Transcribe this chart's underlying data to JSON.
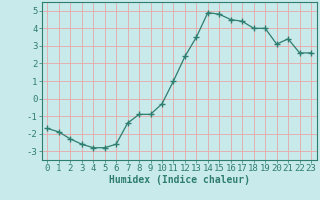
{
  "x": [
    0,
    1,
    2,
    3,
    4,
    5,
    6,
    7,
    8,
    9,
    10,
    11,
    12,
    13,
    14,
    15,
    16,
    17,
    18,
    19,
    20,
    21,
    22,
    23
  ],
  "y": [
    -1.7,
    -1.9,
    -2.3,
    -2.6,
    -2.8,
    -2.8,
    -2.6,
    -1.4,
    -0.9,
    -0.9,
    -0.3,
    1.0,
    2.4,
    3.5,
    4.9,
    4.8,
    4.5,
    4.4,
    4.0,
    4.0,
    3.1,
    3.4,
    2.6,
    2.6
  ],
  "xlabel": "Humidex (Indice chaleur)",
  "xlim": [
    -0.5,
    23.5
  ],
  "ylim": [
    -3.5,
    5.5
  ],
  "yticks": [
    -3,
    -2,
    -1,
    0,
    1,
    2,
    3,
    4,
    5
  ],
  "xticks": [
    0,
    1,
    2,
    3,
    4,
    5,
    6,
    7,
    8,
    9,
    10,
    11,
    12,
    13,
    14,
    15,
    16,
    17,
    18,
    19,
    20,
    21,
    22,
    23
  ],
  "line_color": "#2e7d6e",
  "marker": "+",
  "markersize": 4.0,
  "linewidth": 0.9,
  "bg_color": "#c8eaea",
  "grid_color": "#e8a8a8",
  "axis_color": "#2e7d6e",
  "xlabel_fontsize": 7,
  "tick_fontsize": 6.5
}
